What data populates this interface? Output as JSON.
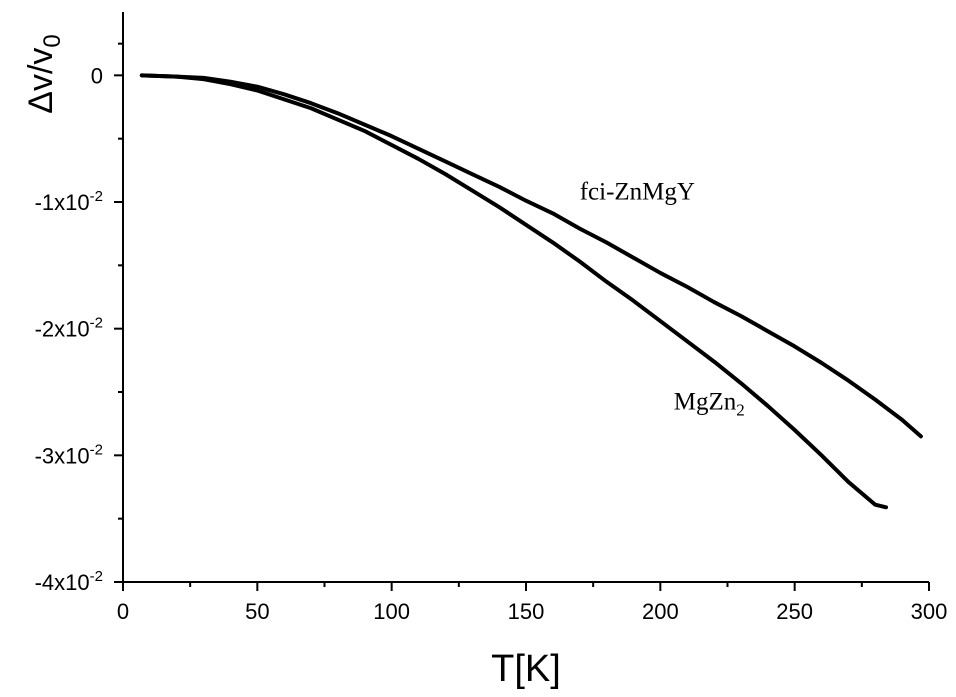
{
  "chart_data": {
    "type": "line",
    "xlabel": "T[K]",
    "ylabel": {
      "text": "Δv/v",
      "subscript": "0"
    },
    "xlim": [
      0,
      300
    ],
    "ylim": [
      -0.04,
      0.005
    ],
    "x_ticks": [
      {
        "value": 0,
        "label": "0"
      },
      {
        "value": 50,
        "label": "50"
      },
      {
        "value": 100,
        "label": "100"
      },
      {
        "value": 150,
        "label": "150"
      },
      {
        "value": 200,
        "label": "200"
      },
      {
        "value": 250,
        "label": "250"
      },
      {
        "value": 300,
        "label": "300"
      }
    ],
    "y_ticks": [
      {
        "value": 0,
        "label": "0",
        "exp": ""
      },
      {
        "value": -0.01,
        "label": "-1x10",
        "exp": "-2"
      },
      {
        "value": -0.02,
        "label": "-2x10",
        "exp": "-2"
      },
      {
        "value": -0.03,
        "label": "-3x10",
        "exp": "-2"
      },
      {
        "value": -0.04,
        "label": "-4x10",
        "exp": "-2"
      }
    ],
    "series": [
      {
        "id": "fci",
        "label_text": "fci-ZnMgY",
        "label_sub": "",
        "x": [
          7,
          20,
          30,
          40,
          50,
          60,
          70,
          80,
          90,
          100,
          110,
          120,
          130,
          140,
          150,
          160,
          170,
          180,
          190,
          200,
          210,
          220,
          230,
          240,
          250,
          260,
          270,
          280,
          290,
          297
        ],
        "y": [
          0,
          -0.0001,
          -0.0002,
          -0.0005,
          -0.0009,
          -0.0015,
          -0.0022,
          -0.003,
          -0.0039,
          -0.0048,
          -0.0058,
          -0.0068,
          -0.0078,
          -0.0088,
          -0.0099,
          -0.0109,
          -0.0121,
          -0.0132,
          -0.0144,
          -0.0156,
          -0.0167,
          -0.0179,
          -0.019,
          -0.0202,
          -0.0214,
          -0.0227,
          -0.0241,
          -0.0256,
          -0.0272,
          -0.0285
        ]
      },
      {
        "id": "mgzn2",
        "label_text": "MgZn",
        "label_sub": "2",
        "x": [
          7,
          20,
          30,
          40,
          50,
          60,
          70,
          80,
          90,
          100,
          110,
          120,
          130,
          140,
          150,
          160,
          170,
          180,
          190,
          200,
          210,
          220,
          230,
          240,
          250,
          260,
          270,
          280,
          284
        ],
        "y": [
          0,
          -0.0001,
          -0.0003,
          -0.0007,
          -0.0012,
          -0.0019,
          -0.0026,
          -0.0035,
          -0.0044,
          -0.0055,
          -0.0066,
          -0.0078,
          -0.0091,
          -0.0104,
          -0.0118,
          -0.0132,
          -0.0147,
          -0.0163,
          -0.0178,
          -0.0194,
          -0.021,
          -0.0226,
          -0.0243,
          -0.0261,
          -0.028,
          -0.03,
          -0.0321,
          -0.0339,
          -0.0341
        ]
      }
    ],
    "series_label_positions": {
      "fci": {
        "x": 170,
        "y": -0.0098
      },
      "mgzn2": {
        "x": 205,
        "y": -0.0264
      }
    },
    "grid": false,
    "colors": {
      "background": "#ffffff",
      "axis": "#000000",
      "series": "#000000"
    }
  }
}
